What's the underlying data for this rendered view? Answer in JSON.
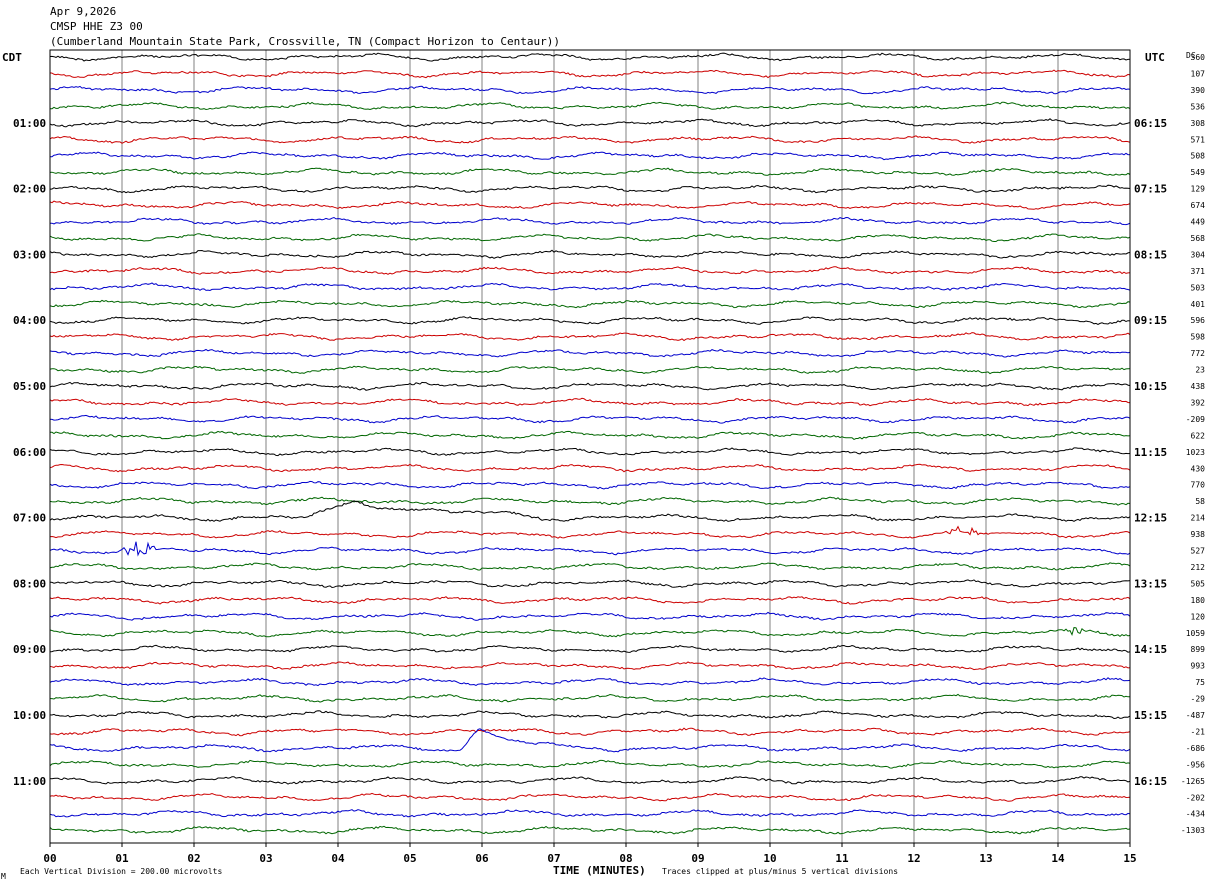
{
  "header": {
    "date": "Apr 9,2026",
    "station": "CMSP HHE Z3 00",
    "location": "(Cumberland Mountain State Park, Crossville, TN (Compact Horizon to Centaur))"
  },
  "left_zone_label": "CDT",
  "right_zone_label": "UTC",
  "dc_header": "DC",
  "footer": {
    "scale_note": "Each Vertical Division =  200.00 microvolts",
    "x_axis_title": "TIME (MINUTES)",
    "clip_note": "Traces clipped at plus/minus 5 vertical divisions",
    "corner_mark": "M"
  },
  "colors": {
    "trace_cycle": [
      "#000000",
      "#cc0000",
      "#0000cc",
      "#006600"
    ],
    "grid": "#808080",
    "frame": "#000000"
  },
  "chart_data": {
    "type": "line",
    "subtype": "helicorder",
    "minutes_per_line": 15,
    "line_count": 48,
    "x_ticks": [
      "00",
      "01",
      "02",
      "03",
      "04",
      "05",
      "06",
      "07",
      "08",
      "09",
      "10",
      "11",
      "12",
      "13",
      "14",
      "15"
    ],
    "xlim": [
      0,
      15
    ],
    "left_time_labels": [
      "01:00",
      "02:00",
      "03:00",
      "04:00",
      "05:00",
      "06:00",
      "07:00",
      "08:00",
      "09:00",
      "10:00",
      "11:00"
    ],
    "right_time_labels": [
      "06:15",
      "07:15",
      "08:15",
      "09:15",
      "10:15",
      "11:15",
      "12:15",
      "13:15",
      "14:15",
      "15:15",
      "16:15"
    ],
    "dc_offsets": [
      "360",
      "107",
      "390",
      "536",
      "308",
      "571",
      "508",
      "549",
      "129",
      "674",
      "449",
      "568",
      "304",
      "371",
      "503",
      "401",
      "596",
      "598",
      "772",
      "23",
      "438",
      "392",
      "-209",
      "622",
      "1023",
      "430",
      "770",
      "58",
      "214",
      "938",
      "527",
      "212",
      "505",
      "180",
      "120",
      "1059",
      "899",
      "993",
      "75",
      "-29",
      "-487",
      "-21",
      "-686",
      "-956",
      "-1265",
      "-202",
      "-434",
      "-1303"
    ],
    "events": [
      {
        "line": 28,
        "minute_start": 3.6,
        "minute_end": 6.8,
        "type": "teleseism_black",
        "peak_divisions": 2.0
      },
      {
        "line": 30,
        "minute_start": 0.9,
        "minute_end": 1.5,
        "type": "burst_blue",
        "peak_divisions": 0.9
      },
      {
        "line": 29,
        "minute_start": 12.3,
        "minute_end": 13.0,
        "type": "burst_red",
        "peak_divisions": 0.6
      },
      {
        "line": 35,
        "minute_start": 14.1,
        "minute_end": 14.4,
        "type": "burst_green",
        "peak_divisions": 0.5
      },
      {
        "line": 42,
        "minute_start": 5.7,
        "minute_end": 7.0,
        "type": "teleseism_blue",
        "peak_divisions": 2.3
      }
    ]
  }
}
